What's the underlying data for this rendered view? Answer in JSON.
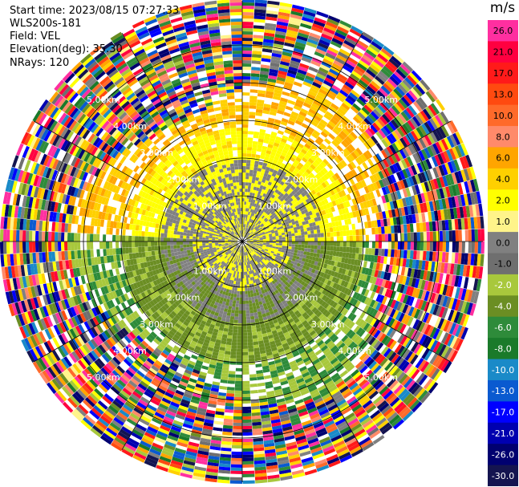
{
  "header": {
    "start_time": "Start time: 2023/08/15 07:27:33",
    "instrument": "WLS200s-181",
    "field": "Field: VEL",
    "elevation": "Elevation(deg): 35.30",
    "nrays": "NRays: 120"
  },
  "range_labels": [
    "1.00km",
    "2.00km",
    "3.00km",
    "4.00km",
    "5.00km"
  ],
  "colorbar": {
    "unit": "m/s",
    "labels": [
      "26.0",
      "21.0",
      "17.0",
      "13.0",
      "10.0",
      "8.0",
      "6.0",
      "4.0",
      "2.0",
      "1.0",
      "0.0",
      "-1.0",
      "-2.0",
      "-4.0",
      "-6.0",
      "-8.0",
      "-10.0",
      "-13.0",
      "-17.0",
      "-21.0",
      "-26.0",
      "-30.0"
    ],
    "colors": [
      "#ff2fa0",
      "#ff0040",
      "#ff1a1a",
      "#ff4a10",
      "#ff6a2a",
      "#ff8a6a",
      "#ffa500",
      "#ffd000",
      "#ffff00",
      "#fff48a",
      "#808080",
      "#6f6f6f",
      "#a8c83c",
      "#6b8e23",
      "#2e8b3a",
      "#1a7a2a",
      "#1a8ac8",
      "#0a5ad0",
      "#0000ff",
      "#0000b0",
      "#000070",
      "#141450"
    ]
  }
}
